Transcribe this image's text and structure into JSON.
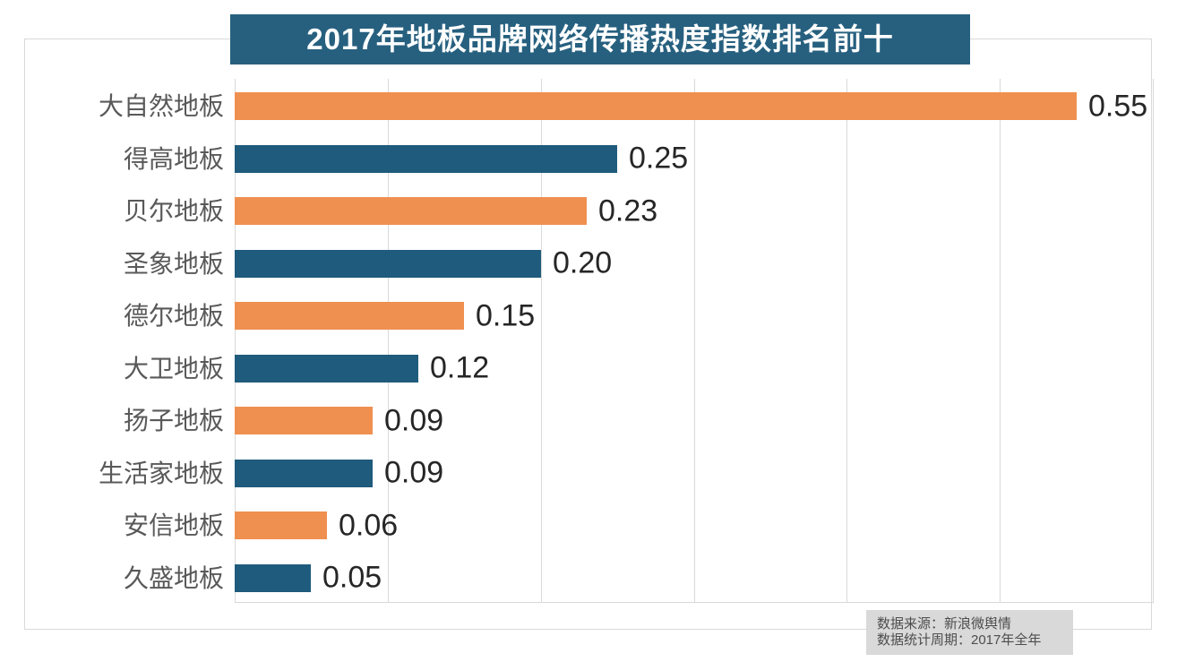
{
  "chart_data": {
    "type": "bar",
    "orientation": "horizontal",
    "title": "2017年地板品牌网络传播热度指数排名前十",
    "categories": [
      "大自然地板",
      "得高地板",
      "贝尔地板",
      "圣象地板",
      "德尔地板",
      "大卫地板",
      "扬子地板",
      "生活家地板",
      "安信地板",
      "久盛地板"
    ],
    "values": [
      0.55,
      0.25,
      0.23,
      0.2,
      0.15,
      0.12,
      0.09,
      0.09,
      0.06,
      0.05
    ],
    "value_labels": [
      "0.55",
      "0.25",
      "0.23",
      "0.20",
      "0.15",
      "0.12",
      "0.09",
      "0.09",
      "0.06",
      "0.05"
    ],
    "xlim": [
      0,
      0.6
    ],
    "grid_step": 0.1,
    "grid": true,
    "legend": false,
    "value_labels_shown": true,
    "bar_colors_alternating": [
      "#ef9050",
      "#1f5b7c"
    ]
  },
  "title_bar": {
    "bg": "#27607f",
    "fg": "#ffffff"
  },
  "source_box": {
    "line1": "数据来源：新浪微舆情",
    "line2": "数据统计周期：2017年全年",
    "bg": "#d9d9d9",
    "fg": "#4d4d4d"
  },
  "colors": {
    "orange_bar": "#ef9050",
    "teal_bar": "#1f5b7c",
    "title_bg": "#27607f",
    "gridline": "#d9d9d9",
    "frame_border": "#d9d9d9",
    "category_label": "#595959",
    "value_label": "#262626"
  }
}
